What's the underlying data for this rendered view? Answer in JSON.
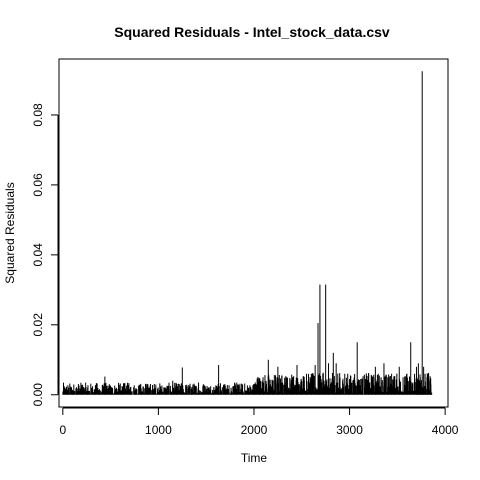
{
  "chart_data": {
    "type": "line",
    "title": "Squared Residuals - Intel_stock_data.csv",
    "xlabel": "Time",
    "ylabel": "Squared Residuals",
    "xlim": [
      -40,
      4030
    ],
    "ylim": [
      -0.0035,
      0.096
    ],
    "x_ticks": [
      0,
      1000,
      2000,
      3000,
      4000
    ],
    "x_tick_labels": [
      "0",
      "1000",
      "2000",
      "3000",
      "4000"
    ],
    "y_ticks": [
      0.0,
      0.02,
      0.04,
      0.06,
      0.08
    ],
    "y_tick_labels": [
      "0.00",
      "0.02",
      "0.04",
      "0.06",
      "0.08"
    ],
    "grid": false,
    "legend": "none",
    "n_points": 3860,
    "series": [
      {
        "x": [
          45,
          100,
          150,
          200,
          260,
          330,
          380,
          440,
          500,
          560,
          620,
          700,
          760,
          820,
          890,
          950,
          1010,
          1080,
          1150,
          1190,
          1250,
          1300,
          1350,
          1420,
          1470,
          1520,
          1580,
          1630,
          1700,
          1760,
          1820,
          1880,
          1940,
          2000,
          2060,
          2100,
          2150,
          2200,
          2250,
          2300,
          2340,
          2400,
          2450,
          2500,
          2550,
          2600,
          2640,
          2670,
          2690,
          2720,
          2750,
          2780,
          2830,
          2860,
          2900,
          2950,
          3000,
          3050,
          3080,
          3130,
          3170,
          3200,
          3240,
          3270,
          3300,
          3330,
          3360,
          3400,
          3440,
          3470,
          3520,
          3560,
          3600,
          3640,
          3680,
          3700,
          3720,
          3740,
          3760,
          3775,
          3790,
          3810,
          3830,
          3850
        ],
        "y": [
          0.0012,
          0.0014,
          0.0018,
          0.0028,
          0.002,
          0.0012,
          0.001,
          0.0052,
          0.0015,
          0.002,
          0.0025,
          0.0012,
          0.0015,
          0.0018,
          0.003,
          0.0016,
          0.0013,
          0.0015,
          0.004,
          0.002,
          0.0078,
          0.0025,
          0.0022,
          0.0035,
          0.003,
          0.0018,
          0.0022,
          0.0085,
          0.0025,
          0.002,
          0.0035,
          0.0028,
          0.002,
          0.0018,
          0.003,
          0.0035,
          0.01,
          0.004,
          0.008,
          0.0035,
          0.005,
          0.004,
          0.0085,
          0.004,
          0.006,
          0.006,
          0.0085,
          0.0205,
          0.0315,
          0.006,
          0.0315,
          0.009,
          0.012,
          0.009,
          0.005,
          0.006,
          0.0045,
          0.005,
          0.015,
          0.0045,
          0.004,
          0.006,
          0.0035,
          0.008,
          0.006,
          0.005,
          0.009,
          0.005,
          0.006,
          0.0045,
          0.008,
          0.005,
          0.006,
          0.015,
          0.006,
          0.008,
          0.009,
          0.005,
          0.0925,
          0.008,
          0.006,
          0.005,
          0.004,
          0.003
        ]
      }
    ]
  }
}
